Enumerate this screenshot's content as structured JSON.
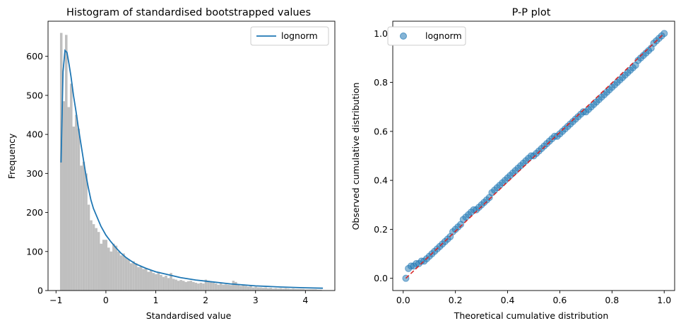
{
  "chart_data": [
    {
      "type": "bar",
      "title": "Histogram of standardised bootstrapped values",
      "xlabel": "Standardised value",
      "ylabel": "Frequency",
      "xlim": [
        -1.16,
        4.59
      ],
      "ylim": [
        0,
        690
      ],
      "xticks": [
        -1,
        0,
        1,
        2,
        3,
        4
      ],
      "yticks": [
        0,
        100,
        200,
        300,
        400,
        500,
        600
      ],
      "legend": {
        "entries": [
          "lognorm"
        ],
        "placement": "top-right"
      },
      "histogram": {
        "color": "#bfbfbf",
        "bin_start": -0.92,
        "bin_width": 0.05,
        "counts": [
          660,
          485,
          655,
          470,
          530,
          420,
          450,
          415,
          320,
          330,
          300,
          220,
          180,
          170,
          160,
          150,
          120,
          130,
          130,
          110,
          100,
          120,
          115,
          100,
          90,
          95,
          85,
          80,
          70,
          75,
          70,
          60,
          62,
          55,
          58,
          48,
          52,
          45,
          42,
          48,
          40,
          35,
          38,
          32,
          45,
          30,
          28,
          25,
          27,
          25,
          22,
          24,
          25,
          22,
          20,
          18,
          20,
          18,
          28,
          25,
          22,
          20,
          18,
          15,
          18,
          15,
          16,
          15,
          14,
          25,
          22,
          14,
          12,
          15,
          12,
          10,
          12,
          8,
          10,
          8,
          8,
          7,
          8,
          6,
          7,
          5,
          6,
          5,
          6,
          5,
          6,
          5,
          4,
          5,
          4,
          4,
          4,
          4,
          3,
          3,
          3,
          3,
          3,
          2,
          2
        ]
      },
      "series": [
        {
          "name": "lognorm",
          "color": "#1f77b4",
          "x": [
            -0.9,
            -0.86,
            -0.82,
            -0.78,
            -0.74,
            -0.7,
            -0.65,
            -0.6,
            -0.55,
            -0.5,
            -0.45,
            -0.4,
            -0.35,
            -0.3,
            -0.25,
            -0.2,
            -0.1,
            0.0,
            0.1,
            0.2,
            0.3,
            0.4,
            0.5,
            0.6,
            0.8,
            1.0,
            1.2,
            1.5,
            1.8,
            2.0,
            2.5,
            3.0,
            3.5,
            4.0,
            4.35
          ],
          "y": [
            328,
            560,
            615,
            610,
            580,
            548,
            500,
            460,
            415,
            375,
            335,
            295,
            262,
            232,
            210,
            195,
            165,
            142,
            125,
            110,
            96,
            85,
            76,
            68,
            57,
            48,
            42,
            33,
            27,
            24,
            17,
            12,
            9,
            7,
            6
          ]
        }
      ]
    },
    {
      "type": "scatter",
      "title": "P-P plot",
      "xlabel": "Theoretical cumulative distribution",
      "ylabel": "Observed cumulative distribution",
      "xlim": [
        -0.04,
        1.04
      ],
      "ylim": [
        -0.05,
        1.05
      ],
      "xticks": [
        "0.0",
        "0.2",
        "0.4",
        "0.6",
        "0.8",
        "1.0"
      ],
      "yticks": [
        "0.0",
        "0.2",
        "0.4",
        "0.6",
        "0.8",
        "1.0"
      ],
      "legend": {
        "entries": [
          "lognorm"
        ],
        "placement": "top-left"
      },
      "reference_line": {
        "x": [
          0.01,
          1.0
        ],
        "y": [
          0.0,
          1.0
        ],
        "color": "#d62728",
        "style": "dashed"
      },
      "series": [
        {
          "name": "lognorm",
          "color": "#1f77b4",
          "x": [
            0.01,
            0.02,
            0.03,
            0.04,
            0.05,
            0.06,
            0.07,
            0.08,
            0.09,
            0.1,
            0.11,
            0.12,
            0.13,
            0.14,
            0.15,
            0.16,
            0.17,
            0.18,
            0.19,
            0.2,
            0.21,
            0.22,
            0.23,
            0.24,
            0.25,
            0.26,
            0.27,
            0.28,
            0.29,
            0.3,
            0.31,
            0.32,
            0.33,
            0.34,
            0.35,
            0.36,
            0.37,
            0.38,
            0.39,
            0.4,
            0.41,
            0.42,
            0.43,
            0.44,
            0.45,
            0.46,
            0.47,
            0.48,
            0.49,
            0.5,
            0.51,
            0.52,
            0.53,
            0.54,
            0.55,
            0.56,
            0.57,
            0.58,
            0.59,
            0.6,
            0.61,
            0.62,
            0.63,
            0.64,
            0.65,
            0.66,
            0.67,
            0.68,
            0.69,
            0.7,
            0.71,
            0.72,
            0.73,
            0.74,
            0.75,
            0.76,
            0.77,
            0.78,
            0.79,
            0.8,
            0.81,
            0.82,
            0.83,
            0.84,
            0.85,
            0.86,
            0.87,
            0.88,
            0.89,
            0.9,
            0.91,
            0.92,
            0.93,
            0.94,
            0.95,
            0.96,
            0.97,
            0.98,
            0.99,
            1.0
          ],
          "y": [
            0.0,
            0.04,
            0.05,
            0.05,
            0.06,
            0.06,
            0.07,
            0.07,
            0.08,
            0.09,
            0.1,
            0.11,
            0.12,
            0.13,
            0.14,
            0.15,
            0.16,
            0.17,
            0.19,
            0.2,
            0.21,
            0.22,
            0.24,
            0.25,
            0.26,
            0.27,
            0.28,
            0.28,
            0.29,
            0.3,
            0.31,
            0.32,
            0.33,
            0.35,
            0.36,
            0.37,
            0.38,
            0.39,
            0.4,
            0.41,
            0.42,
            0.43,
            0.44,
            0.45,
            0.46,
            0.47,
            0.48,
            0.49,
            0.5,
            0.5,
            0.51,
            0.52,
            0.53,
            0.54,
            0.55,
            0.56,
            0.57,
            0.58,
            0.58,
            0.59,
            0.6,
            0.61,
            0.62,
            0.63,
            0.64,
            0.65,
            0.66,
            0.67,
            0.68,
            0.68,
            0.69,
            0.7,
            0.71,
            0.72,
            0.73,
            0.74,
            0.75,
            0.76,
            0.77,
            0.78,
            0.79,
            0.8,
            0.81,
            0.82,
            0.83,
            0.84,
            0.85,
            0.86,
            0.87,
            0.89,
            0.9,
            0.91,
            0.92,
            0.93,
            0.94,
            0.96,
            0.97,
            0.98,
            0.99,
            1.0
          ]
        }
      ]
    }
  ]
}
